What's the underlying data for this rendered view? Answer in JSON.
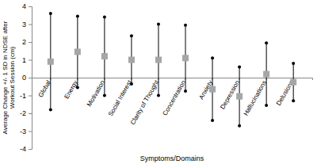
{
  "chart_data": {
    "type": "errorbar",
    "xlabel": "Symptoms/Domains",
    "ylabel": [
      "Average Change +/- 1 SD in NDSE after",
      "Workout Session (cm)"
    ],
    "categories": [
      "Global",
      "Energy",
      "Motivation",
      "Social Interest",
      "Clarity of Thought",
      "Concentration",
      "Anxiety",
      "Depression",
      "Hallucinations",
      "Delusions"
    ],
    "values": [
      0.9,
      1.45,
      1.2,
      1.0,
      1.0,
      1.1,
      -0.65,
      -1.05,
      0.2,
      -0.25
    ],
    "errors": [
      2.7,
      2.0,
      2.2,
      1.35,
      2.0,
      1.85,
      1.75,
      1.65,
      1.75,
      1.05
    ],
    "color": "#a6a6a6",
    "marker": "square",
    "ylim": [
      -4,
      4
    ],
    "yticks": [
      -4,
      -3,
      -2,
      -1,
      0,
      1,
      2,
      3,
      4
    ],
    "grid": false
  }
}
